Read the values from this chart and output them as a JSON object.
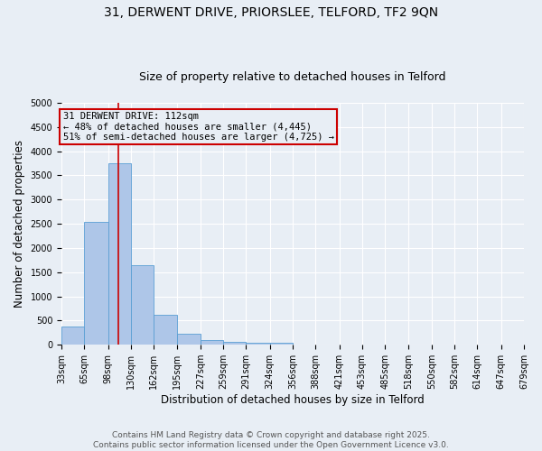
{
  "title_line1": "31, DERWENT DRIVE, PRIORSLEE, TELFORD, TF2 9QN",
  "title_line2": "Size of property relative to detached houses in Telford",
  "xlabel": "Distribution of detached houses by size in Telford",
  "ylabel": "Number of detached properties",
  "bar_color": "#aec6e8",
  "bar_edge_color": "#5a9fd4",
  "bin_edges": [
    33,
    65,
    98,
    130,
    162,
    195,
    227,
    259,
    291,
    324,
    356,
    388,
    421,
    453,
    485,
    518,
    550,
    582,
    614,
    647,
    679
  ],
  "bar_heights": [
    380,
    2540,
    3760,
    1640,
    610,
    230,
    100,
    55,
    40,
    40,
    0,
    0,
    0,
    0,
    0,
    0,
    0,
    0,
    0,
    0
  ],
  "bin_labels": [
    "33sqm",
    "65sqm",
    "98sqm",
    "130sqm",
    "162sqm",
    "195sqm",
    "227sqm",
    "259sqm",
    "291sqm",
    "324sqm",
    "356sqm",
    "388sqm",
    "421sqm",
    "453sqm",
    "485sqm",
    "518sqm",
    "550sqm",
    "582sqm",
    "614sqm",
    "647sqm",
    "679sqm"
  ],
  "vline_x": 112,
  "vline_color": "#cc0000",
  "annotation_line1": "31 DERWENT DRIVE: 112sqm",
  "annotation_line2": "← 48% of detached houses are smaller (4,445)",
  "annotation_line3": "51% of semi-detached houses are larger (4,725) →",
  "annotation_box_color": "#cc0000",
  "ylim": [
    0,
    5000
  ],
  "yticks": [
    0,
    500,
    1000,
    1500,
    2000,
    2500,
    3000,
    3500,
    4000,
    4500,
    5000
  ],
  "footer_line1": "Contains HM Land Registry data © Crown copyright and database right 2025.",
  "footer_line2": "Contains public sector information licensed under the Open Government Licence v3.0.",
  "bg_color": "#e8eef5",
  "title_fontsize": 10,
  "subtitle_fontsize": 9,
  "axis_label_fontsize": 8.5,
  "tick_fontsize": 7,
  "annotation_fontsize": 7.5,
  "footer_fontsize": 6.5
}
